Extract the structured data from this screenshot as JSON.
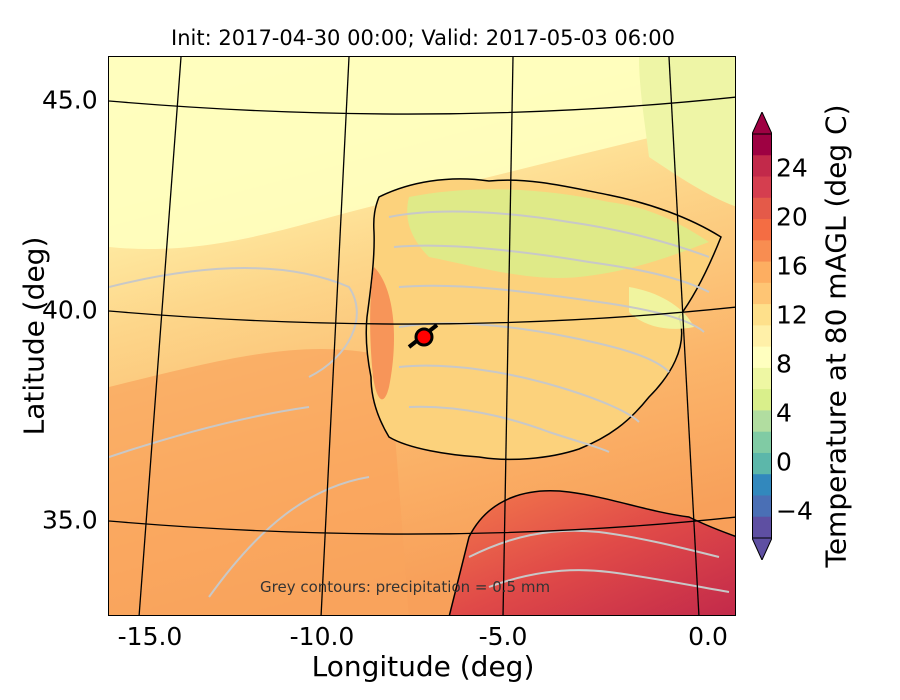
{
  "title": "Init: 2017-04-30 00:00; Valid: 2017-05-03 06:00",
  "axes": {
    "xlabel": "Longitude (deg)",
    "ylabel": "Latitude (deg)",
    "xticks": [
      "-15.0",
      "-10.0",
      "-5.0",
      "0.0"
    ],
    "yticks": [
      "45.0",
      "40.0",
      "35.0"
    ]
  },
  "footnote": "Grey contours: precipitation = 0.5 mm",
  "colorbar": {
    "label": "Temperature at 80 mAGL (deg C)",
    "ticks": [
      "24",
      "20",
      "16",
      "12",
      "8",
      "4",
      "0",
      "−4"
    ],
    "colors": [
      "#9e0142",
      "#c2294a",
      "#d53e4f",
      "#e45a49",
      "#f46d43",
      "#f88d51",
      "#fdae61",
      "#fec574",
      "#fee08b",
      "#fff0a8",
      "#ffffbf",
      "#eef7a3",
      "#d9ef8b",
      "#b1dda0",
      "#80cba4",
      "#5cb7aa",
      "#3288bd",
      "#4a6fb5",
      "#5e4fa2"
    ]
  },
  "marker": {
    "label": "site-marker",
    "color": "#ff0000"
  },
  "colors": {
    "ocean_north": "#fff3b0",
    "ocean_mid": "#fdd88a",
    "ocean_south": "#f9a55f",
    "land": "#fcd27c",
    "land_hot": "#e34a4a"
  }
}
